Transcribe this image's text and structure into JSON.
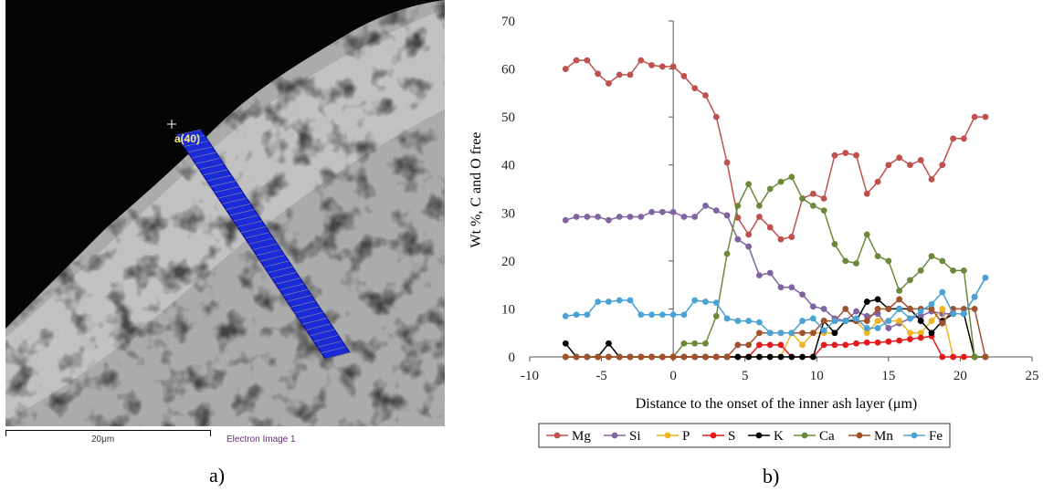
{
  "panel_a": {
    "point_label": "a(40)",
    "scale_text": "20μm",
    "image_caption": "Electron Image 1",
    "panel_label": "a)"
  },
  "panel_b": {
    "panel_label": "b)"
  },
  "chart_data": {
    "type": "line",
    "title": "",
    "xlabel": "Distance to the onset of the inner ash layer (μm)",
    "ylabel": "Wt %, C and O free",
    "xlim": [
      -10,
      25
    ],
    "ylim": [
      0,
      70
    ],
    "xticks": [
      "-10",
      "-5",
      "0",
      "5",
      "10",
      "15",
      "20",
      "25"
    ],
    "yticks": [
      "0",
      "10",
      "20",
      "30",
      "40",
      "50",
      "60",
      "70"
    ],
    "grid": false,
    "legend_position": "bottom",
    "x": [
      -7.5,
      -6.75,
      -6.0,
      -5.25,
      -4.5,
      -3.75,
      -3.0,
      -2.25,
      -1.5,
      -0.75,
      0.0,
      0.75,
      1.5,
      2.25,
      3.0,
      3.75,
      4.5,
      5.25,
      6.0,
      6.75,
      7.5,
      8.25,
      9.0,
      9.75,
      10.5,
      11.25,
      12.0,
      12.75,
      13.5,
      14.25,
      15.0,
      15.75,
      16.5,
      17.25,
      18.0,
      18.75,
      19.5,
      20.25,
      21.0,
      21.75
    ],
    "series": [
      {
        "name": "Mg",
        "color": "#c0504d",
        "values": [
          60,
          61.8,
          61.8,
          59,
          57,
          58.8,
          58.8,
          61.8,
          60.8,
          60.5,
          60.5,
          58.5,
          56,
          54.5,
          50,
          40.5,
          29,
          25.5,
          29.2,
          27,
          24.5,
          25,
          33,
          34,
          33,
          42,
          42.5,
          42,
          34,
          36.5,
          40,
          41.5,
          40,
          41,
          37,
          40,
          45.5,
          45.5,
          50,
          50
        ]
      },
      {
        "name": "Si",
        "color": "#8064a2",
        "values": [
          28.5,
          29.2,
          29.2,
          29.2,
          28.5,
          29.2,
          29.2,
          29.2,
          30.2,
          30.2,
          30.2,
          29.2,
          29.2,
          31.5,
          30.5,
          29.5,
          24.5,
          23,
          17,
          17.5,
          14.5,
          14.5,
          13,
          10.5,
          10,
          8,
          7.5,
          9.5,
          8.5,
          9,
          6,
          7,
          8,
          8.5,
          9.5,
          9,
          9,
          9,
          12.5,
          16.5
        ]
      },
      {
        "name": "P",
        "color": "#f0b323",
        "values": [
          0,
          0,
          0,
          0,
          0,
          0,
          0,
          0,
          0,
          0,
          0,
          0,
          0,
          0,
          0,
          0,
          0,
          0,
          0,
          0,
          0,
          5,
          2.5,
          5,
          5,
          5,
          7.5,
          7.5,
          5,
          7.5,
          7.5,
          7.5,
          5,
          5,
          7.5,
          10,
          0,
          0,
          0,
          0
        ]
      },
      {
        "name": "S",
        "color": "#e31a1c",
        "values": [
          0,
          0,
          0,
          0,
          0,
          0,
          0,
          0,
          0,
          0,
          0,
          0,
          0,
          0,
          0,
          0,
          0,
          0,
          2.5,
          2.5,
          2.5,
          0,
          0,
          0,
          2.5,
          2.5,
          2.5,
          2.8,
          3,
          3,
          3.2,
          3.4,
          3.7,
          4,
          4.3,
          0,
          0,
          0,
          0,
          0
        ]
      },
      {
        "name": "K",
        "color": "#000000",
        "values": [
          2.8,
          0,
          0,
          0,
          2.8,
          0,
          0,
          0,
          0,
          0,
          0,
          0,
          0,
          0,
          0,
          0,
          0,
          0,
          0,
          0,
          0,
          0,
          0,
          0,
          7.5,
          5,
          7.5,
          7.5,
          11.5,
          12,
          10,
          10,
          10,
          7.5,
          5,
          7.5,
          9,
          9,
          0,
          0
        ]
      },
      {
        "name": "Ca",
        "color": "#6a8a3a",
        "values": [
          0,
          0,
          0,
          0,
          0,
          0,
          0,
          0,
          0,
          0,
          0,
          2.8,
          2.8,
          2.8,
          8.5,
          21.5,
          31.5,
          36,
          31.5,
          35,
          36.5,
          37.5,
          33,
          31.5,
          30.5,
          23.5,
          20,
          19.5,
          25.5,
          21,
          20,
          13.8,
          16,
          18,
          21,
          20,
          18,
          18,
          0,
          0
        ]
      },
      {
        "name": "Mn",
        "color": "#a0522d",
        "values": [
          0,
          0,
          0,
          0,
          0,
          0,
          0,
          0,
          0,
          0,
          0,
          0,
          0,
          0,
          0,
          0,
          2.5,
          2.5,
          5,
          5,
          5,
          5,
          5,
          5,
          7.5,
          7.5,
          10,
          7.5,
          7.5,
          10,
          10,
          12,
          10,
          10,
          10,
          7,
          10,
          10,
          10,
          0
        ]
      },
      {
        "name": "Fe",
        "color": "#4ba2d4",
        "values": [
          8.5,
          8.8,
          8.8,
          11.5,
          11.5,
          11.8,
          11.8,
          8.8,
          8.8,
          8.8,
          8.8,
          8.8,
          11.8,
          11.5,
          11.3,
          8,
          7.5,
          7.5,
          7.2,
          5,
          5,
          5,
          7.5,
          8,
          5.5,
          7.5,
          7.5,
          8,
          6,
          6,
          7.5,
          10,
          8,
          9.5,
          11,
          13.5,
          9,
          9,
          12.5,
          16.5
        ]
      }
    ]
  },
  "colors": {
    "sem_band": "#1020c8",
    "sem_outline": "#e8e070",
    "axis": "#555555"
  }
}
